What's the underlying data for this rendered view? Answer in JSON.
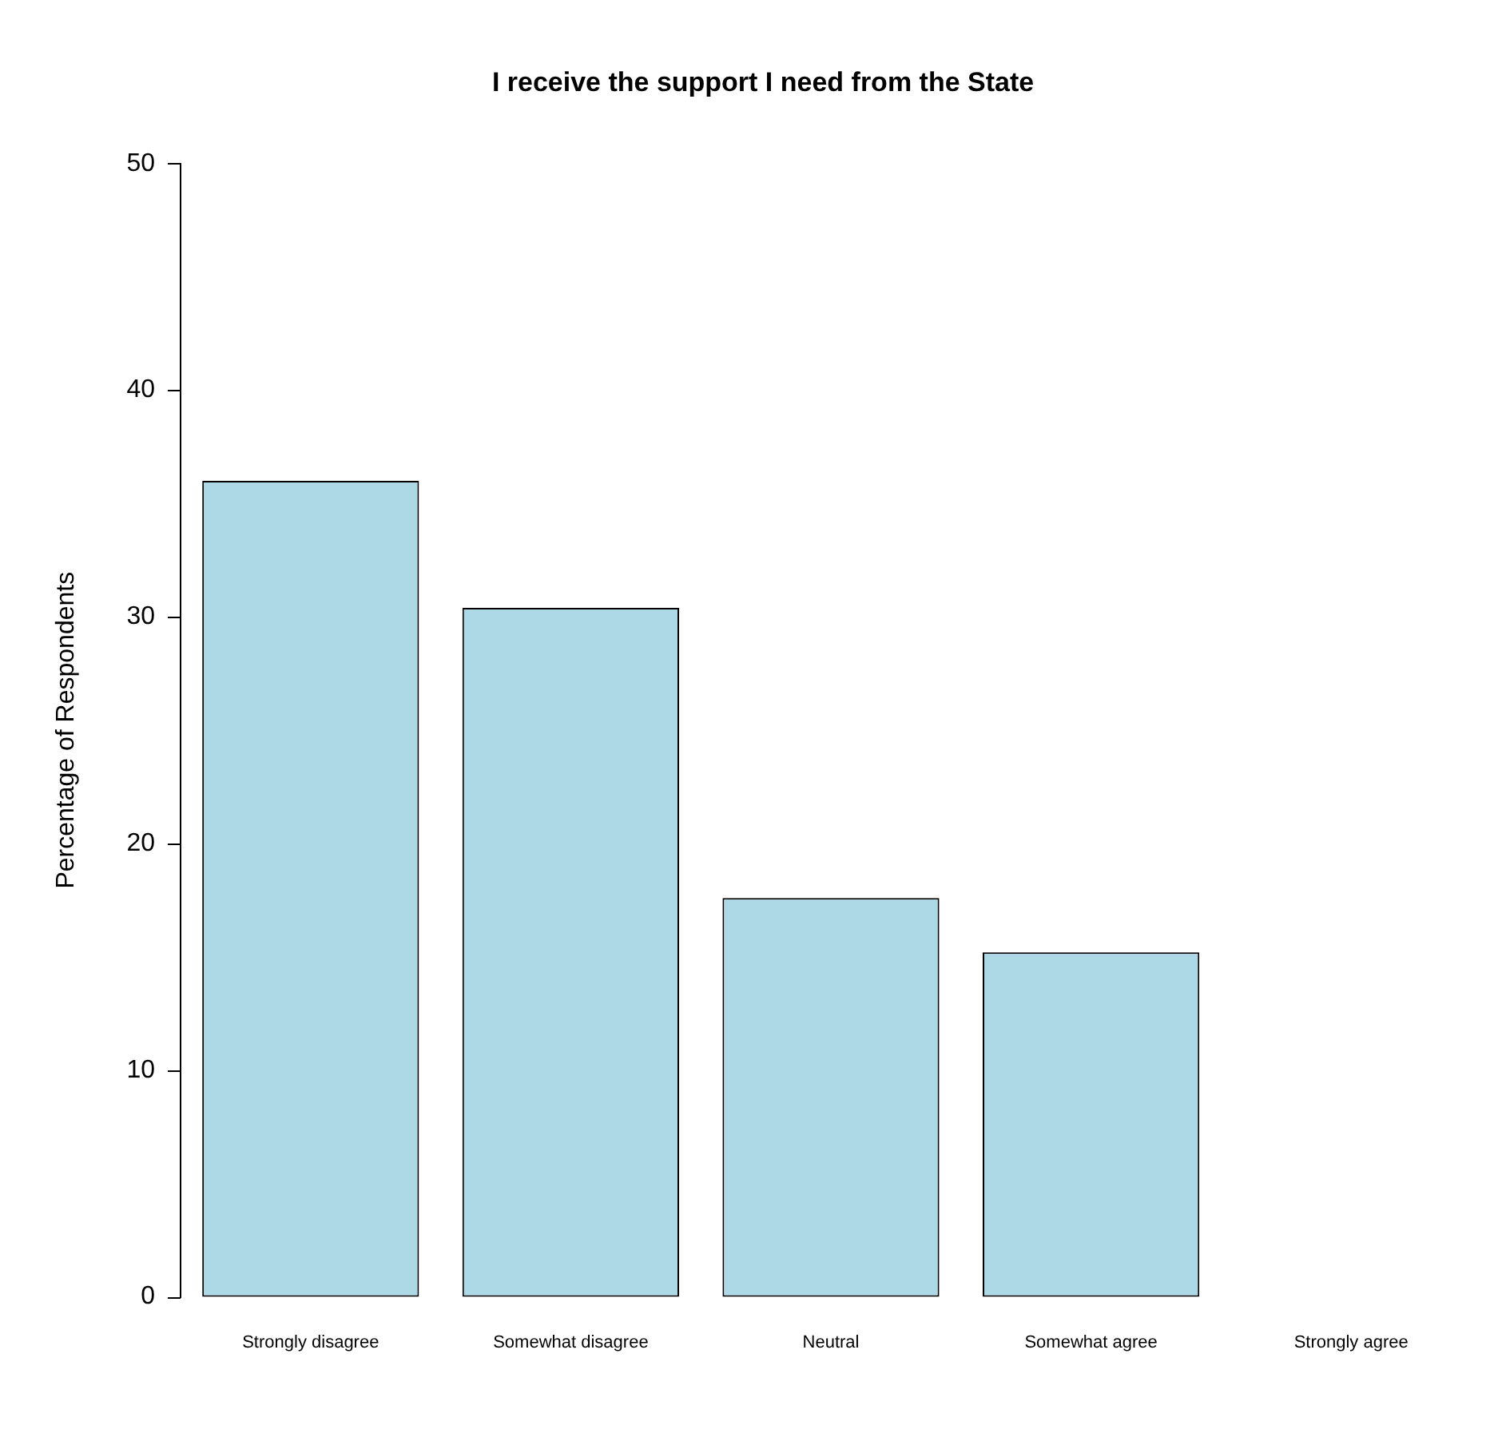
{
  "chart_data": {
    "type": "bar",
    "title": "I receive the support I need from the State",
    "ylabel": "Percentage of Respondents",
    "categories": [
      "Strongly disagree",
      "Somewhat disagree",
      "Neutral",
      "Somewhat agree",
      "Strongly agree"
    ],
    "values": [
      36,
      30.4,
      17.6,
      15.2,
      0
    ],
    "color": "#add8e6",
    "ylim": [
      0,
      50
    ],
    "yticks": [
      0,
      10,
      20,
      30,
      40,
      50
    ],
    "grid": false,
    "legend": false
  }
}
